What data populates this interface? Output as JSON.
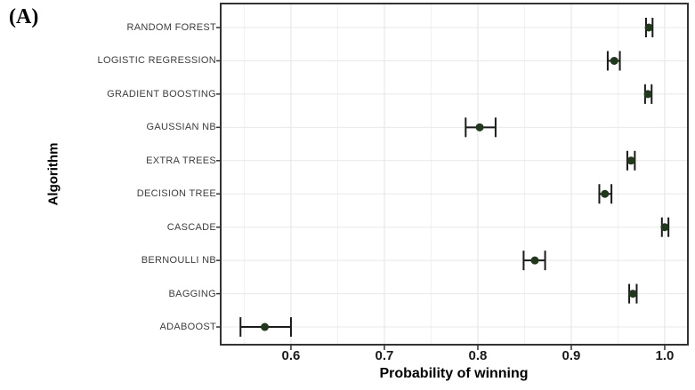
{
  "figure": {
    "panel_label": "(A)",
    "x_axis": {
      "title": "Probability of winning",
      "tick_labels": [
        "0.6",
        "0.7",
        "0.8",
        "0.9",
        "1.0"
      ],
      "tick_values": [
        0.6,
        0.7,
        0.8,
        0.9,
        1.0
      ],
      "minor_tick_values": [
        0.55,
        0.65,
        0.75,
        0.85,
        0.95
      ],
      "range": [
        0.5248,
        1.0248
      ]
    },
    "y_axis": {
      "title": "Algorithm"
    }
  },
  "chart_data": {
    "type": "scatter",
    "subtype": "dot-plot-with-error-bars",
    "orientation": "horizontal",
    "title": "",
    "xlabel": "Probability of winning",
    "ylabel": "Algorithm",
    "xlim": [
      0.5248,
      1.0248
    ],
    "grid": true,
    "legend": false,
    "categories": [
      "RANDOM FOREST",
      "LOGISTIC REGRESSION",
      "GRADIENT BOOSTING",
      "GAUSSIAN NB",
      "EXTRA TREES",
      "DECISION TREE",
      "CASCADE",
      "BERNOULLI NB",
      "BAGGING",
      "ADABOOST"
    ],
    "series": [
      {
        "name": "probability_of_winning",
        "points": [
          {
            "category": "RANDOM FOREST",
            "value": 0.983,
            "ci_low": 0.98,
            "ci_high": 0.987
          },
          {
            "category": "LOGISTIC REGRESSION",
            "value": 0.946,
            "ci_low": 0.939,
            "ci_high": 0.952
          },
          {
            "category": "GRADIENT BOOSTING",
            "value": 0.982,
            "ci_low": 0.979,
            "ci_high": 0.986
          },
          {
            "category": "GAUSSIAN NB",
            "value": 0.802,
            "ci_low": 0.787,
            "ci_high": 0.819
          },
          {
            "category": "EXTRA TREES",
            "value": 0.964,
            "ci_low": 0.96,
            "ci_high": 0.968
          },
          {
            "category": "DECISION TREE",
            "value": 0.936,
            "ci_low": 0.93,
            "ci_high": 0.943
          },
          {
            "category": "CASCADE",
            "value": 1.0,
            "ci_low": 0.997,
            "ci_high": 1.004
          },
          {
            "category": "BERNOULLI NB",
            "value": 0.861,
            "ci_low": 0.849,
            "ci_high": 0.872
          },
          {
            "category": "BAGGING",
            "value": 0.966,
            "ci_low": 0.962,
            "ci_high": 0.97
          },
          {
            "category": "ADABOOST",
            "value": 0.572,
            "ci_low": 0.546,
            "ci_high": 0.6
          }
        ]
      }
    ],
    "colors": {
      "point": "#20391b",
      "error_bar": "#1a1a1a",
      "grid_major": "#e3e3e3",
      "grid_minor": "#f1f1f1",
      "grid_horizontal": "#e8e8e8",
      "panel_border": "#333333",
      "tick_mark": "#333333",
      "background": "#ffffff"
    }
  }
}
